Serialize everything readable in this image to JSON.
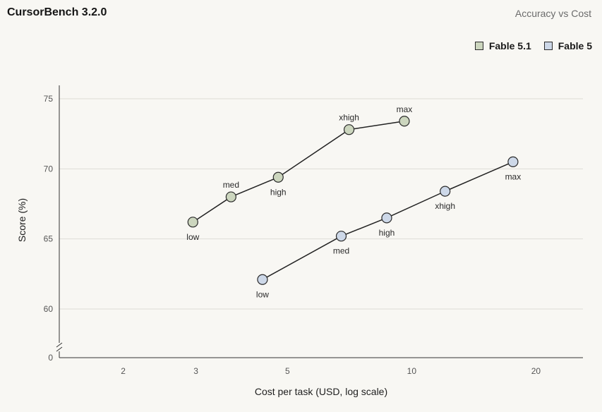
{
  "header": {
    "title": "CursorBench 3.2.0",
    "subtitle": "Accuracy vs Cost"
  },
  "colors": {
    "fable_5_1_fill": "#ccd6be",
    "fable_5_fill": "#cdd8e8",
    "line": "#222222",
    "grid": "#dedcd6",
    "background": "#f8f7f3"
  },
  "chart_data": {
    "type": "line",
    "xlabel": "Cost per task (USD, log scale)",
    "ylabel": "Score (%)",
    "x_scale": "log",
    "xlim": [
      1.4,
      26
    ],
    "ylim": [
      58,
      76
    ],
    "x_ticks": [
      2,
      3,
      5,
      10,
      20
    ],
    "x_tick_labels": [
      "2",
      "3",
      "5",
      "10",
      "20"
    ],
    "y_ticks": [
      60,
      65,
      70,
      75
    ],
    "y_tick_labels": [
      "60",
      "65",
      "70",
      "75"
    ],
    "y_axis_break": true,
    "y_break_label": "0",
    "grid": "horizontal",
    "legend_position": "top-right",
    "series": [
      {
        "name": "Fable 5.1",
        "points": [
          {
            "x": 2.95,
            "y": 66.2,
            "label": "low",
            "label_pos": "below"
          },
          {
            "x": 3.65,
            "y": 68.0,
            "label": "med",
            "label_pos": "above"
          },
          {
            "x": 4.75,
            "y": 69.4,
            "label": "high",
            "label_pos": "below"
          },
          {
            "x": 7.05,
            "y": 72.8,
            "label": "xhigh",
            "label_pos": "above"
          },
          {
            "x": 9.6,
            "y": 73.4,
            "label": "max",
            "label_pos": "above"
          }
        ]
      },
      {
        "name": "Fable 5",
        "points": [
          {
            "x": 4.35,
            "y": 62.1,
            "label": "low",
            "label_pos": "below"
          },
          {
            "x": 6.75,
            "y": 65.2,
            "label": "med",
            "label_pos": "below"
          },
          {
            "x": 8.7,
            "y": 66.5,
            "label": "high",
            "label_pos": "below"
          },
          {
            "x": 12.05,
            "y": 68.4,
            "label": "xhigh",
            "label_pos": "below"
          },
          {
            "x": 17.6,
            "y": 70.5,
            "label": "max",
            "label_pos": "below"
          }
        ]
      }
    ]
  }
}
